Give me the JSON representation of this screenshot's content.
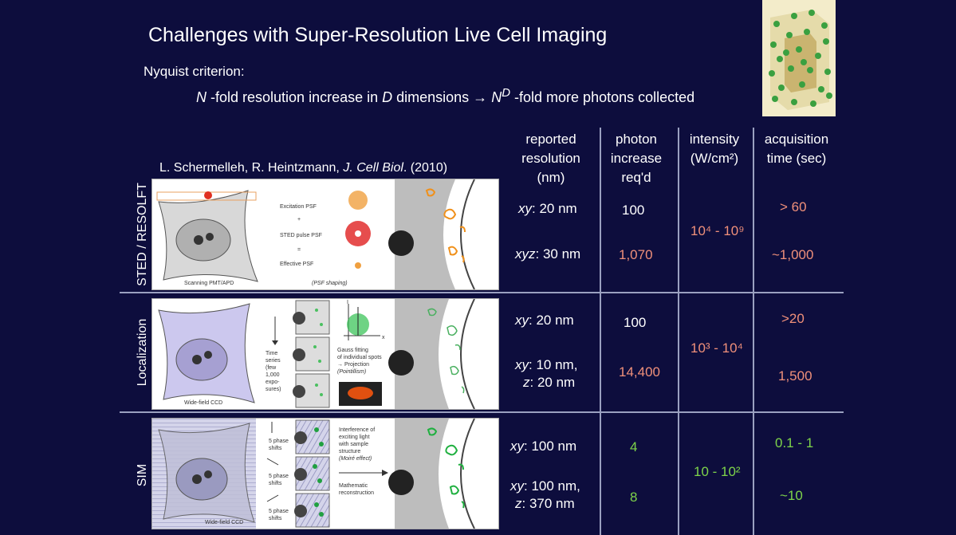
{
  "slide": {
    "title": "Challenges with Super-Resolution Live Cell Imaging",
    "nyquist_label": "Nyquist criterion:",
    "nyquist_formula": {
      "n": "N",
      "part1": " -fold resolution increase in ",
      "d": "D",
      "part2": " dimensions → ",
      "nd": "N",
      "sup": "D",
      "part3": " -fold more photons collected"
    },
    "citation": {
      "authors": "L. Schermelleh, R. Heintzmann, ",
      "journal": "J. Cell Biol",
      "rest": ". (2010)"
    }
  },
  "table": {
    "headers": {
      "resolution": [
        "reported",
        "resolution",
        "(nm)"
      ],
      "photon": [
        "photon",
        "increase",
        "req'd"
      ],
      "intensity": [
        "intensity",
        "(W/cm²)"
      ],
      "time": [
        "acquisition",
        "time (sec)"
      ]
    },
    "rows": {
      "sted": {
        "label": "STED / RESOLFT",
        "res1_axis": "xy",
        "res1_val": ": 20 nm",
        "res2_axis": "xyz",
        "res2_val": ": 30 nm",
        "photon1": "100",
        "photon2": "1,070",
        "intensity": "10⁴ - 10⁹",
        "time1": "> 60",
        "time2": "~1,000"
      },
      "loc": {
        "label": "Localization",
        "res1_axis": "xy",
        "res1_val": ": 20 nm",
        "res2a_axis": "xy",
        "res2a_val": ": 10 nm,",
        "res2b_axis": "z",
        "res2b_val": ": 20 nm",
        "photon1": "100",
        "photon2": "14,400",
        "intensity": "10³ - 10⁴",
        "time1": ">20",
        "time2": "1,500"
      },
      "sim": {
        "label": "SIM",
        "res1_axis": "xy",
        "res1_val": ": 100 nm",
        "res2a_axis": "xy",
        "res2a_val": ": 100 nm,",
        "res2b_axis": "z",
        "res2b_val": ": 370 nm",
        "photon1": "4",
        "photon2": "8",
        "intensity": "10 - 10²",
        "time1": "0.1 - 1",
        "time2": "~10"
      }
    }
  },
  "panels": {
    "sted": {
      "detector": "Scanning PMT/APD",
      "exc": "Excitation PSF",
      "plus": "+",
      "sted_psf": "STED pulse PSF",
      "eq": "=",
      "eff": "Effective PSF",
      "shaping": "(PSF shaping)"
    },
    "loc": {
      "detector": "Wide-field CCD",
      "ts": [
        "Time",
        "series",
        "(few",
        "1,000",
        "expo-",
        "sures)"
      ],
      "gauss": [
        "Gauss fitting",
        "of individual spots",
        "→ Projection",
        "(Pointillism)"
      ],
      "axis_i": "I",
      "axis_x": "x"
    },
    "sim": {
      "detector": "Wide-field CCD",
      "phase": [
        "5 phase",
        "shifts"
      ],
      "interf": [
        "Interference of",
        "exciting light",
        "with sample",
        "structure",
        "(Moiré effect)"
      ],
      "math": [
        "Mathematic",
        "reconstruction"
      ]
    }
  },
  "colors": {
    "background": "#0d0d3d",
    "salmon": "#f0907a",
    "green": "#7ed44a"
  }
}
